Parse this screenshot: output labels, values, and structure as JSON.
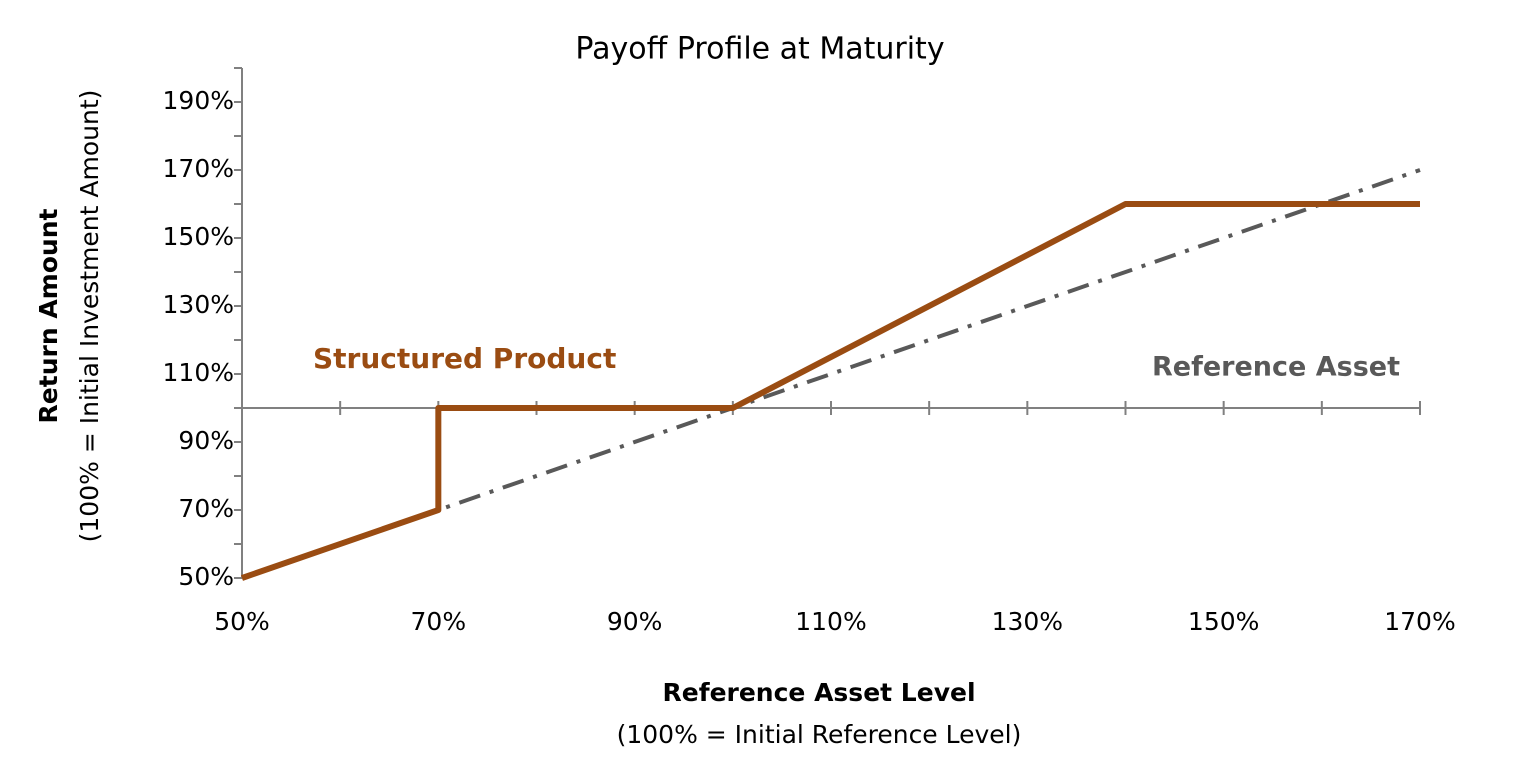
{
  "chart_data": {
    "type": "line",
    "title": "Payoff Profile at Maturity",
    "x_label": "Reference Asset Level",
    "x_sublabel": "(100% = Initial Reference  Level)",
    "y_label": "Return Amount",
    "y_sublabel": "(100% = Initial Investment  Amount)",
    "xlim": [
      50,
      170
    ],
    "ylim": [
      50,
      200
    ],
    "x_axis_crosses_at": 100,
    "xticks": [
      {
        "value": 50,
        "label": "50%"
      },
      {
        "value": 70,
        "label": "70%"
      },
      {
        "value": 90,
        "label": "90%"
      },
      {
        "value": 110,
        "label": "110%"
      },
      {
        "value": 130,
        "label": "130%"
      },
      {
        "value": 150,
        "label": "150%"
      },
      {
        "value": 170,
        "label": "170%"
      }
    ],
    "x_minor_ticks": [
      60,
      80,
      100,
      120,
      140,
      160
    ],
    "yticks": [
      {
        "value": 50,
        "label": "50%"
      },
      {
        "value": 70,
        "label": "70%"
      },
      {
        "value": 90,
        "label": "90%"
      },
      {
        "value": 110,
        "label": "110%"
      },
      {
        "value": 130,
        "label": "130%"
      },
      {
        "value": 150,
        "label": "150%"
      },
      {
        "value": 170,
        "label": "170%"
      },
      {
        "value": 190,
        "label": "190%"
      }
    ],
    "y_minor_ticks": [
      60,
      80,
      100,
      120,
      140,
      160,
      180,
      200
    ],
    "series": [
      {
        "name": "Structured Product",
        "color": "#9a4c12",
        "dash": "solid",
        "x": [
          50,
          70,
          70,
          100,
          140,
          170
        ],
        "values": [
          50,
          70,
          100,
          100,
          160,
          160
        ]
      },
      {
        "name": "Reference Asset",
        "color": "#595959",
        "dash": "dashdot",
        "x": [
          50,
          170
        ],
        "values": [
          50,
          170
        ]
      }
    ]
  }
}
